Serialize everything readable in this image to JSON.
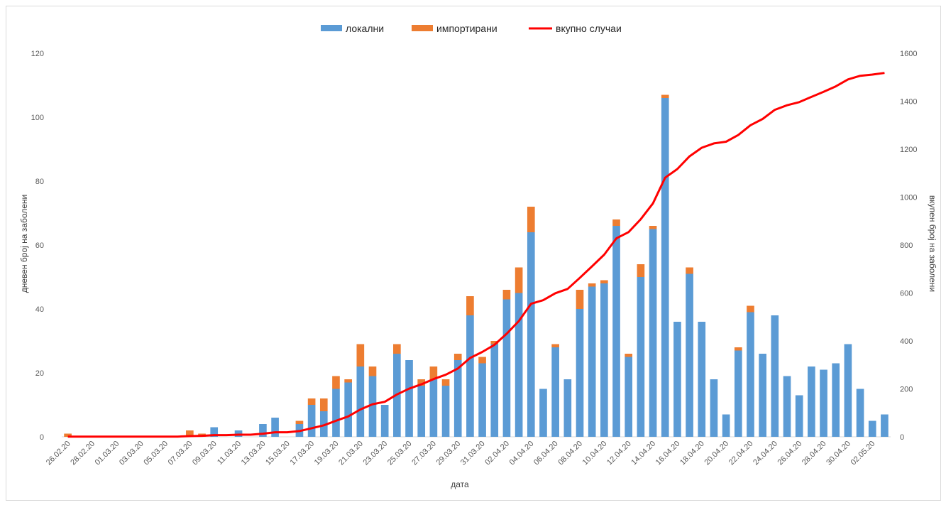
{
  "chart_data": {
    "type": "bar",
    "stacked": true,
    "categories": [
      "26.02.20",
      "27.02.20",
      "28.02.20",
      "29.02.20",
      "01.03.20",
      "02.03.20",
      "03.03.20",
      "04.03.20",
      "05.03.20",
      "06.03.20",
      "07.03.20",
      "08.03.20",
      "09.03.20",
      "10.03.20",
      "11.03.20",
      "12.03.20",
      "13.03.20",
      "14.03.20",
      "15.03.20",
      "16.03.20",
      "17.03.20",
      "18.03.20",
      "19.03.20",
      "20.03.20",
      "21.03.20",
      "22.03.20",
      "23.03.20",
      "24.03.20",
      "25.03.20",
      "26.03.20",
      "27.03.20",
      "28.03.20",
      "29.03.20",
      "30.03.20",
      "31.03.20",
      "01.04.20",
      "02.04.20",
      "03.04.20",
      "04.04.20",
      "05.04.20",
      "06.04.20",
      "07.04.20",
      "08.04.20",
      "09.04.20",
      "10.04.20",
      "11.04.20",
      "12.04.20",
      "13.04.20",
      "14.04.20",
      "15.04.20",
      "16.04.20",
      "17.04.20",
      "18.04.20",
      "19.04.20",
      "20.04.20",
      "21.04.20",
      "22.04.20",
      "23.04.20",
      "24.04.20",
      "25.04.20",
      "26.04.20",
      "27.04.20",
      "28.04.20",
      "29.04.20",
      "30.04.20",
      "01.05.20",
      "02.05.20",
      "03.05.20"
    ],
    "xtick_labels": [
      "26.02.20",
      "28.02.20",
      "01.03.20",
      "03.03.20",
      "05.03.20",
      "07.03.20",
      "09.03.20",
      "11.03.20",
      "13.03.20",
      "15.03.20",
      "17.03.20",
      "19.03.20",
      "21.03.20",
      "23.03.20",
      "25.03.20",
      "27.03.20",
      "29.03.20",
      "31.03.20",
      "02.04.20",
      "04.04.20",
      "06.04.20",
      "08.04.20",
      "10.04.20",
      "12.04.20",
      "14.04.20",
      "16.04.20",
      "18.04.20",
      "20.04.20",
      "22.04.20",
      "24.04.20",
      "26.04.20",
      "28.04.20",
      "30.04.20",
      "02.05.20"
    ],
    "series": [
      {
        "name": "локални",
        "type": "bar",
        "axis": "left",
        "color": "#5B9BD5",
        "values": [
          0,
          0,
          0,
          0,
          0,
          0,
          0,
          0,
          0,
          0,
          0,
          0,
          3,
          0,
          2,
          0,
          4,
          6,
          0,
          4,
          10,
          8,
          15,
          17,
          22,
          19,
          10,
          26,
          24,
          16,
          18,
          16,
          24,
          38,
          23,
          29,
          43,
          45,
          64,
          15,
          28,
          18,
          40,
          47,
          48,
          66,
          25,
          50,
          65,
          106,
          36,
          51,
          36,
          18,
          7,
          27,
          39,
          26,
          38,
          19,
          13,
          22,
          21,
          23,
          29,
          15,
          5,
          7
        ]
      },
      {
        "name": "импортирани",
        "type": "bar",
        "axis": "left",
        "color": "#ED7D31",
        "values": [
          1,
          0,
          0,
          0,
          0,
          0,
          0,
          0,
          0,
          0,
          2,
          1,
          0,
          0,
          0,
          0,
          0,
          0,
          0,
          1,
          2,
          4,
          4,
          1,
          7,
          3,
          0,
          3,
          0,
          2,
          4,
          2,
          2,
          6,
          2,
          1,
          3,
          8,
          8,
          0,
          1,
          0,
          6,
          1,
          1,
          2,
          1,
          4,
          1,
          1,
          0,
          2,
          0,
          0,
          0,
          1,
          2,
          0,
          0,
          0,
          0,
          0,
          0,
          0,
          0,
          0,
          0,
          0
        ]
      },
      {
        "name": "вкупно случаи",
        "type": "line",
        "axis": "right",
        "color": "#FF0000",
        "values": [
          1,
          1,
          1,
          1,
          1,
          1,
          1,
          1,
          1,
          1,
          3,
          4,
          7,
          7,
          9,
          9,
          13,
          19,
          19,
          24,
          36,
          48,
          67,
          85,
          114,
          136,
          146,
          177,
          201,
          219,
          241,
          259,
          285,
          329,
          354,
          384,
          430,
          483,
          555,
          570,
          599,
          617,
          663,
          711,
          760,
          828,
          854,
          908,
          974,
          1081,
          1117,
          1170,
          1206,
          1224,
          1231,
          1259,
          1300,
          1326,
          1364,
          1383,
          1396,
          1418,
          1439,
          1462,
          1491,
          1506,
          1511,
          1518
        ]
      }
    ],
    "ylabel": "дневен број на заболени",
    "ylabel_right": "вкупен број на заболени",
    "xlabel": "дата",
    "ylim": [
      0,
      120
    ],
    "yticks": [
      0,
      20,
      40,
      60,
      80,
      100,
      120
    ],
    "ylim_right": [
      0,
      1600
    ],
    "yticks_right": [
      0,
      200,
      400,
      600,
      800,
      1000,
      1200,
      1400,
      1600
    ],
    "grid": false,
    "legend_position": "top-center"
  }
}
